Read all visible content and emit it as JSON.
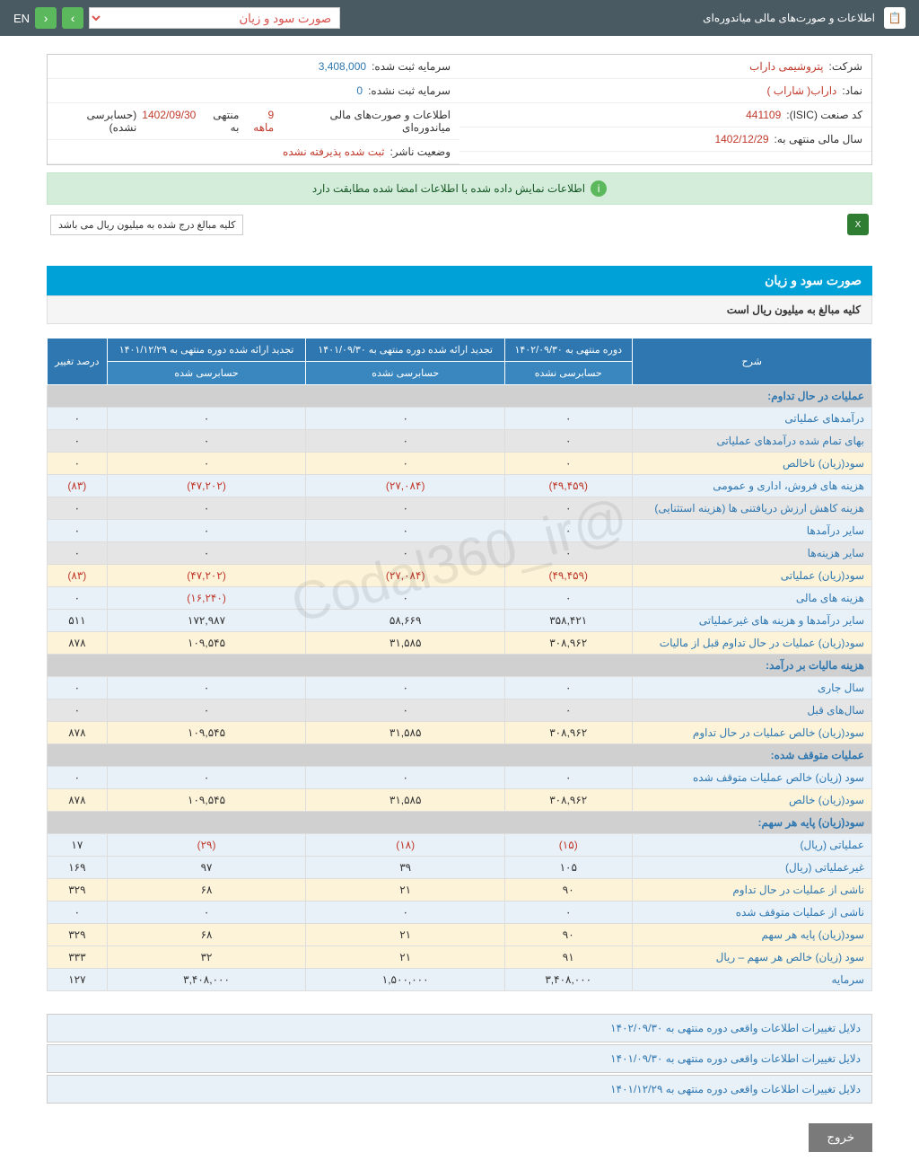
{
  "topbar": {
    "title": "اطلاعات و صورت‌های مالی میاندوره‌ای",
    "dropdown": "صورت سود و زیان",
    "lang": "EN"
  },
  "info": {
    "company_label": "شرکت:",
    "company_value": "پتروشیمی داراب",
    "symbol_label": "نماد:",
    "symbol_value": "داراب( شاراب )",
    "isic_label": "کد صنعت (ISIC):",
    "isic_value": "441109",
    "year_label": "سال مالی منتهی به:",
    "year_value": "1402/12/29",
    "capital_reg_label": "سرمایه ثبت شده:",
    "capital_reg_value": "3,408,000",
    "capital_unreg_label": "سرمایه ثبت نشده:",
    "capital_unreg_value": "0",
    "period_label": "اطلاعات و صورت‌های مالی میاندوره‌ای",
    "period_detail": "9 ماهه",
    "period_end": "منتهی به",
    "period_date": "1402/09/30",
    "period_audit": "(حسابرسی نشده)",
    "status_label": "وضعیت ناشر:",
    "status_value": "ثبت شده پذیرفته نشده"
  },
  "alert": "اطلاعات نمایش داده شده با اطلاعات امضا شده مطابقت دارد",
  "note": "کلیه مبالغ درج شده به میلیون ریال می باشد",
  "section": {
    "title": "صورت سود و زیان",
    "subtitle": "کلیه مبالغ به میلیون ریال است"
  },
  "table": {
    "headers": {
      "desc": "شرح",
      "p1": "دوره منتهی به ۱۴۰۲/۰۹/۳۰",
      "p2": "تجدید ارائه شده دوره منتهی به ۱۴۰۱/۰۹/۳۰",
      "p3": "تجدید ارائه شده دوره منتهی به ۱۴۰۱/۱۲/۲۹",
      "pct": "درصد تغییر",
      "unaudited": "حسابرسی نشده",
      "audited": "حسابرسی شده"
    },
    "rows": [
      {
        "type": "header",
        "label": "عملیات در حال تداوم:"
      },
      {
        "type": "blue",
        "label": "درآمدهای عملیاتی",
        "c1": "۰",
        "c2": "۰",
        "c3": "۰",
        "c4": "۰"
      },
      {
        "type": "gray",
        "label": "بهای تمام شده درآمدهای عملیاتی",
        "c1": "۰",
        "c2": "۰",
        "c3": "۰",
        "c4": "۰"
      },
      {
        "type": "yellow",
        "label": "سود(زیان) ناخالص",
        "c1": "۰",
        "c2": "۰",
        "c3": "۰",
        "c4": "۰"
      },
      {
        "type": "blue",
        "label": "هزینه های فروش، اداری و عمومی",
        "c1": "(۴۹,۴۵۹)",
        "c2": "(۲۷,۰۸۴)",
        "c3": "(۴۷,۲۰۲)",
        "c4": "(۸۳)",
        "neg": true
      },
      {
        "type": "gray",
        "label": "هزینه کاهش ارزش دریافتنی ها (هزینه استثنایی)",
        "c1": "۰",
        "c2": "۰",
        "c3": "۰",
        "c4": "۰"
      },
      {
        "type": "blue",
        "label": "سایر درآمدها",
        "c1": "۰",
        "c2": "۰",
        "c3": "۰",
        "c4": "۰"
      },
      {
        "type": "gray",
        "label": "سایر هزینه‌ها",
        "c1": "۰",
        "c2": "۰",
        "c3": "۰",
        "c4": "۰"
      },
      {
        "type": "yellow",
        "label": "سود(زیان) عملیاتی",
        "c1": "(۴۹,۴۵۹)",
        "c2": "(۲۷,۰۸۴)",
        "c3": "(۴۷,۲۰۲)",
        "c4": "(۸۳)",
        "neg": true
      },
      {
        "type": "blue",
        "label": "هزینه های مالی",
        "c1": "۰",
        "c2": "۰",
        "c3": "(۱۶,۲۴۰)",
        "c4": "۰",
        "neg3": true
      },
      {
        "type": "blue",
        "label": "سایر درآمدها و هزینه های غیرعملیاتی",
        "c1": "۳۵۸,۴۲۱",
        "c2": "۵۸,۶۶۹",
        "c3": "۱۷۲,۹۸۷",
        "c4": "۵۱۱"
      },
      {
        "type": "yellow",
        "label": "سود(زیان) عملیات در حال تداوم قبل از مالیات",
        "c1": "۳۰۸,۹۶۲",
        "c2": "۳۱,۵۸۵",
        "c3": "۱۰۹,۵۴۵",
        "c4": "۸۷۸"
      },
      {
        "type": "header",
        "label": "هزینه مالیات بر درآمد:"
      },
      {
        "type": "blue",
        "label": "سال جاری",
        "c1": "۰",
        "c2": "۰",
        "c3": "۰",
        "c4": "۰"
      },
      {
        "type": "gray",
        "label": "سال‌های قبل",
        "c1": "۰",
        "c2": "۰",
        "c3": "۰",
        "c4": "۰"
      },
      {
        "type": "yellow",
        "label": "سود(زیان) خالص عملیات در حال تداوم",
        "c1": "۳۰۸,۹۶۲",
        "c2": "۳۱,۵۸۵",
        "c3": "۱۰۹,۵۴۵",
        "c4": "۸۷۸"
      },
      {
        "type": "header",
        "label": "عملیات متوقف شده:"
      },
      {
        "type": "blue",
        "label": "سود (زیان) خالص عملیات متوقف شده",
        "c1": "۰",
        "c2": "۰",
        "c3": "۰",
        "c4": "۰"
      },
      {
        "type": "yellow",
        "label": "سود(زیان) خالص",
        "c1": "۳۰۸,۹۶۲",
        "c2": "۳۱,۵۸۵",
        "c3": "۱۰۹,۵۴۵",
        "c4": "۸۷۸"
      },
      {
        "type": "header",
        "label": "سود(زیان) پایه هر سهم:"
      },
      {
        "type": "blue",
        "label": "عملیاتی (ریال)",
        "c1": "(۱۵)",
        "c2": "(۱۸)",
        "c3": "(۲۹)",
        "c4": "۱۷",
        "neg1": true,
        "neg2": true,
        "neg3": true
      },
      {
        "type": "blue",
        "label": "غیرعملیاتی (ریال)",
        "c1": "۱۰۵",
        "c2": "۳۹",
        "c3": "۹۷",
        "c4": "۱۶۹"
      },
      {
        "type": "yellow",
        "label": "ناشی از عملیات در حال تداوم",
        "c1": "۹۰",
        "c2": "۲۱",
        "c3": "۶۸",
        "c4": "۳۲۹"
      },
      {
        "type": "blue",
        "label": "ناشی از عملیات متوقف شده",
        "c1": "۰",
        "c2": "۰",
        "c3": "۰",
        "c4": "۰"
      },
      {
        "type": "yellow",
        "label": "سود(زیان) پایه هر سهم",
        "c1": "۹۰",
        "c2": "۲۱",
        "c3": "۶۸",
        "c4": "۳۲۹"
      },
      {
        "type": "yellow",
        "label": "سود (زیان) خالص هر سهم – ریال",
        "c1": "۹۱",
        "c2": "۲۱",
        "c3": "۳۲",
        "c4": "۳۳۳"
      },
      {
        "type": "blue",
        "label": "سرمایه",
        "c1": "۳,۴۰۸,۰۰۰",
        "c2": "۱,۵۰۰,۰۰۰",
        "c3": "۳,۴۰۸,۰۰۰",
        "c4": "۱۲۷"
      }
    ]
  },
  "reasons": {
    "r1": "دلایل تغییرات اطلاعات واقعی دوره منتهی به ۱۴۰۲/۰۹/۳۰",
    "r2": "دلایل تغییرات اطلاعات واقعی دوره منتهی به ۱۴۰۱/۰۹/۳۰",
    "r3": "دلایل تغییرات اطلاعات واقعی دوره منتهی به ۱۴۰۱/۱۲/۲۹"
  },
  "exit": "خروج",
  "watermark": "@Codal360_ir"
}
